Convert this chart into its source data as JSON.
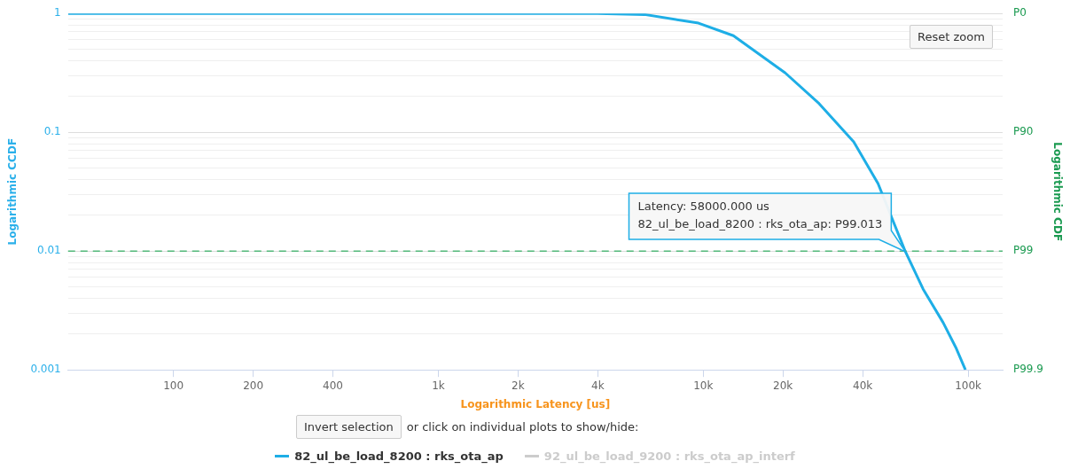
{
  "chart_data": {
    "type": "line",
    "xlabel": "Logarithmic Latency [us]",
    "ylabel": "Logarithmic CCDF",
    "y2label": "Logarithmic CDF",
    "x": [
      40,
      4000,
      6000,
      9600,
      13000,
      20400,
      27400,
      37000,
      45700,
      58000,
      67600,
      80500,
      89800,
      97700
    ],
    "series": [
      {
        "name": "82_ul_be_load_8200 : rks_ota_ap",
        "color": "#1eaee6",
        "values": [
          1,
          1,
          0.98,
          0.83,
          0.65,
          0.316,
          0.174,
          0.083,
          0.037,
          0.00987,
          0.0048,
          0.0025,
          0.00155,
          0.001
        ]
      },
      {
        "name": "92_ul_be_load_9200 : rks_ota_ap_interf",
        "color": "#cccccc",
        "values": [
          null,
          null,
          null,
          null,
          null,
          null,
          null,
          null,
          null,
          null,
          null,
          null,
          null,
          null
        ]
      }
    ],
    "log": "xy",
    "xlim": [
      40,
      135000
    ],
    "xticks": [
      100,
      200,
      400,
      {
        "value": 1000,
        "label": "1k"
      },
      {
        "value": 2000,
        "label": "2k"
      },
      {
        "value": 4000,
        "label": "4k"
      },
      {
        "value": 10000,
        "label": "10k"
      },
      {
        "value": 20000,
        "label": "20k"
      },
      {
        "value": 40000,
        "label": "40k"
      },
      {
        "value": 100000,
        "label": "100k"
      }
    ],
    "ylim": [
      0.001,
      1
    ],
    "yticks": [
      0.001,
      0.01,
      0.1,
      1
    ],
    "grid": "y",
    "legend": "bottom",
    "ref_lines": [
      {
        "axis": "y",
        "value": 0.01,
        "color": "#52b879",
        "line_style": "dashed"
      }
    ],
    "annotations": [
      "Latency: 58000.000 us",
      {
        "text": "82_ul_be_load_8200 : rks_ota_ap: P99.013",
        "x": 58000,
        "y": 0.00987
      },
      "Reset zoom",
      "Invert selection",
      "or click on individual plots to show/hide:",
      "P0",
      "P90",
      "P99",
      "P99.9"
    ]
  }
}
